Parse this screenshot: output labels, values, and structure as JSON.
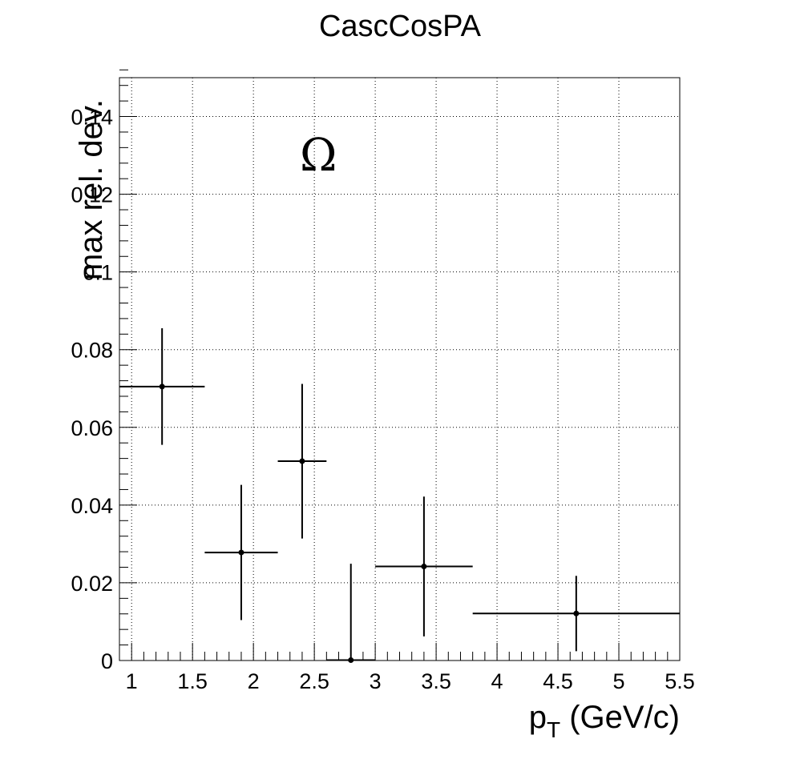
{
  "chart_data": {
    "type": "scatter",
    "title": "CascCosPA",
    "xlabel_base": "p",
    "xlabel_sub": "T",
    "xlabel_rest": " (GeV/c)",
    "ylabel": "max rel. dev.",
    "annotation": "Ω",
    "xlim": [
      0.9,
      5.5
    ],
    "ylim": [
      0,
      0.15
    ],
    "grid": true,
    "x_ticks": [
      1,
      1.5,
      2,
      2.5,
      3,
      3.5,
      4,
      4.5,
      5,
      5.5
    ],
    "x_tick_labels": [
      "1",
      "1.5",
      "2",
      "2.5",
      "3",
      "3.5",
      "4",
      "4.5",
      "5",
      "5.5"
    ],
    "y_ticks": [
      0,
      0.02,
      0.04,
      0.06,
      0.08,
      0.1,
      0.12,
      0.14
    ],
    "y_tick_labels": [
      "0",
      "0.02",
      "0.04",
      "0.06",
      "0.08",
      "0.1",
      "0.12",
      "0.14"
    ],
    "points": [
      {
        "x": 1.25,
        "y": 0.0705,
        "xlow": 0.9,
        "xhigh": 1.6,
        "yerr": 0.015
      },
      {
        "x": 1.9,
        "y": 0.0278,
        "xlow": 1.6,
        "xhigh": 2.2,
        "yerr": 0.0174
      },
      {
        "x": 2.4,
        "y": 0.0513,
        "xlow": 2.2,
        "xhigh": 2.6,
        "yerr": 0.0199
      },
      {
        "x": 2.8,
        "y": 0.0001,
        "xlow": 2.6,
        "xhigh": 3.0,
        "yerr": 0.0248
      },
      {
        "x": 3.4,
        "y": 0.0242,
        "xlow": 3.0,
        "xhigh": 3.8,
        "yerr": 0.018
      },
      {
        "x": 4.65,
        "y": 0.0121,
        "xlow": 3.8,
        "xhigh": 5.5,
        "yerr": 0.0097
      }
    ]
  }
}
